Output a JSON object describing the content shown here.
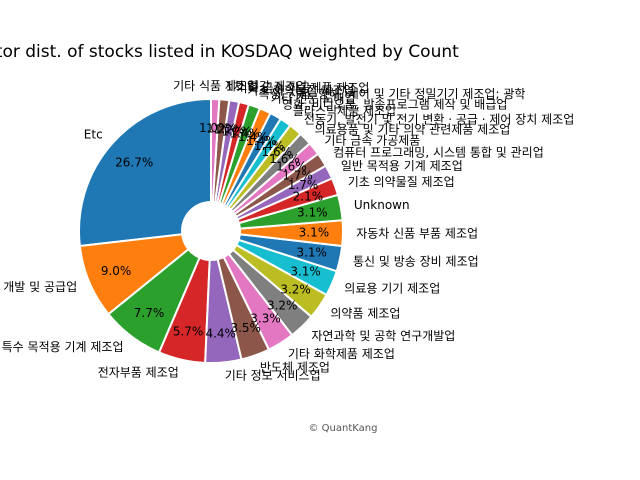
{
  "chart_data": {
    "type": "pie",
    "title": "Sector dist. of stocks listed in KOSDAQ weighted by Count",
    "slices": [
      {
        "label": "Etc",
        "value": 26.7,
        "pct": "26.7%",
        "color": "#1f77b4"
      },
      {
        "label": "소프트웨어 개발 및 공급업",
        "value": 9.0,
        "pct": "9.0%",
        "color": "#ff7f0e"
      },
      {
        "label": "특수 목적용 기계 제조업",
        "value": 7.7,
        "pct": "7.7%",
        "color": "#2ca02c"
      },
      {
        "label": "전자부품 제조업",
        "value": 5.7,
        "pct": "5.7%",
        "color": "#d62728"
      },
      {
        "label": "기타 정보 서비스업",
        "value": 4.4,
        "pct": "4.4%",
        "color": "#9467bd"
      },
      {
        "label": "반도체 제조업",
        "value": 3.5,
        "pct": "3.5%",
        "color": "#8c564b"
      },
      {
        "label": "기타 화학제품 제조업",
        "value": 3.3,
        "pct": "3.3%",
        "color": "#e377c2"
      },
      {
        "label": "자연과학 및 공학 연구개발업",
        "value": 3.2,
        "pct": "3.2%",
        "color": "#7f7f7f"
      },
      {
        "label": "의약품 제조업",
        "value": 3.2,
        "pct": "3.2%",
        "color": "#bcbd22"
      },
      {
        "label": "의료용 기기 제조업",
        "value": 3.1,
        "pct": "3.1%",
        "color": "#17becf"
      },
      {
        "label": "통신 및 방송 장비 제조업",
        "value": 3.1,
        "pct": "3.1%",
        "color": "#1f77b4"
      },
      {
        "label": "자동차 신품 부품 제조업",
        "value": 3.1,
        "pct": "3.1%",
        "color": "#ff7f0e"
      },
      {
        "label": "Unknown",
        "value": 3.1,
        "pct": "3.1%",
        "color": "#2ca02c"
      },
      {
        "label": "기초 의약물질 제조업",
        "value": 2.1,
        "pct": "2.1%",
        "color": "#d62728"
      },
      {
        "label": "일반 목적용 기계 제조업",
        "value": 1.7,
        "pct": "1.7%",
        "color": "#9467bd"
      },
      {
        "label": "컴퓨터 프로그래밍, 시스템 통합 및 관리업",
        "value": 1.7,
        "pct": "1.7%",
        "color": "#8c564b"
      },
      {
        "label": "기타 금속 가공제품",
        "value": 1.6,
        "pct": "1.6%",
        "color": "#e377c2"
      },
      {
        "label": "의료용품 및 기타 의약 관련제품 제조업",
        "value": 1.6,
        "pct": "1.6%",
        "color": "#7f7f7f"
      },
      {
        "label": "전동기, 발전기 및 전기 변환 · 공급 · 제어 장치 제조업",
        "value": 1.6,
        "pct": "1.6%",
        "color": "#bcbd22"
      },
      {
        "label": "플라스틱제품 제조업",
        "value": 1.4,
        "pct": "1.4%",
        "color": "#17becf"
      },
      {
        "label": "영화, 비디오물, 방송프로그램 제작 및 배급업",
        "value": 1.4,
        "pct": "1.4%",
        "color": "#1f77b4"
      },
      {
        "label": "기타 전문 도매업",
        "value": 1.4,
        "pct": "1.4%",
        "color": "#ff7f0e"
      },
      {
        "label": "측정, 시험, 항해, 제어 및 기타 정밀기기 제조업; 광학",
        "value": 1.4,
        "pct": "1.4%",
        "color": "#2ca02c"
      },
      {
        "label": "기초 화학물질 제조업",
        "value": 1.2,
        "pct": "1.2%",
        "color": "#d62728"
      },
      {
        "label": "기타 금속 가공제품 제조업",
        "value": 1.2,
        "pct": "1.2%",
        "color": "#9467bd"
      },
      {
        "label": "1차 철강 제조업",
        "value": 1.2,
        "pct": "1.2%",
        "color": "#8c564b"
      },
      {
        "label": "기타 식품 제조업",
        "value": 1.0,
        "pct": "1.0%",
        "color": "#e377c2"
      }
    ]
  },
  "credit": "© QuantKang"
}
